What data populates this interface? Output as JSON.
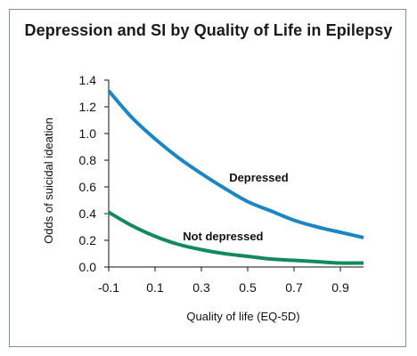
{
  "chart_data": {
    "type": "line",
    "title": "Depression and SI by Quality of Life in Epilepsy",
    "xlabel": "Quality of life (EQ-5D)",
    "ylabel": "Odds of suicidal ideation",
    "xlim": [
      -0.1,
      1.0
    ],
    "ylim": [
      0,
      1.4
    ],
    "xticks": [
      -0.1,
      0.1,
      0.3,
      0.5,
      0.7,
      0.9
    ],
    "xtick_labels": [
      "-0.1",
      "0.1",
      "0.3",
      "0.5",
      "0.7",
      "0.9"
    ],
    "yticks": [
      0,
      0.2,
      0.4,
      0.6,
      0.8,
      1.0,
      1.2,
      1.4
    ],
    "ytick_labels": [
      "0.0",
      "0.2",
      "0.4",
      "0.6",
      "0.8",
      "1.0",
      "1.2",
      "1.4"
    ],
    "grid": false,
    "series": [
      {
        "name": "Depressed",
        "color": "#1b86c4",
        "x": [
          -0.1,
          0.0,
          0.1,
          0.2,
          0.3,
          0.4,
          0.5,
          0.6,
          0.7,
          0.8,
          0.9,
          1.0
        ],
        "y": [
          1.32,
          1.12,
          0.96,
          0.82,
          0.7,
          0.59,
          0.49,
          0.42,
          0.35,
          0.3,
          0.26,
          0.22
        ]
      },
      {
        "name": "Not depressed",
        "color": "#138a5a",
        "x": [
          -0.1,
          0.0,
          0.1,
          0.2,
          0.3,
          0.4,
          0.5,
          0.6,
          0.7,
          0.8,
          0.9,
          1.0
        ],
        "y": [
          0.41,
          0.31,
          0.23,
          0.17,
          0.13,
          0.1,
          0.08,
          0.06,
          0.05,
          0.04,
          0.03,
          0.03
        ]
      }
    ],
    "annotations": [
      {
        "text": "Depressed",
        "series": "Depressed",
        "x": 0.42,
        "y": 0.64
      },
      {
        "text": "Not depressed",
        "series": "Not depressed",
        "x": 0.22,
        "y": 0.2
      }
    ]
  }
}
